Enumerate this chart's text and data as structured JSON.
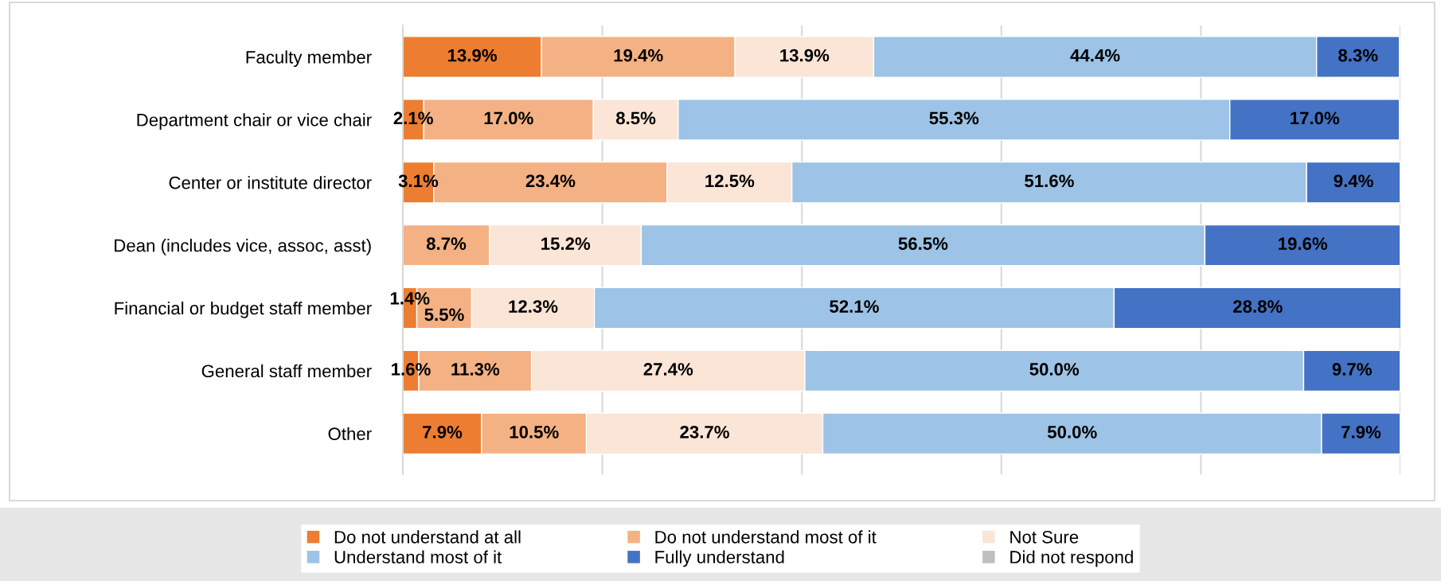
{
  "chart_data": {
    "type": "bar",
    "orientation": "horizontal",
    "stacked": true,
    "categories": [
      "Faculty member",
      "Department chair or vice chair",
      "Center or institute director",
      "Dean (includes vice, assoc, asst)",
      "Financial or budget staff member",
      "General staff member",
      "Other"
    ],
    "series": [
      {
        "name": "Do not understand at all",
        "color": "#ed7d31",
        "values": [
          13.9,
          2.1,
          3.1,
          null,
          1.4,
          1.6,
          7.9
        ],
        "value_labels": [
          "13.9%",
          "2.1%",
          "3.1%",
          null,
          "1.4%",
          "1.6%",
          "7.9%"
        ]
      },
      {
        "name": "Do not understand most of it",
        "color": "#f4b183",
        "values": [
          19.4,
          17.0,
          23.4,
          8.7,
          5.5,
          11.3,
          10.5
        ],
        "value_labels": [
          "19.4%",
          "17.0%",
          "23.4%",
          "8.7%",
          "5.5%",
          "11.3%",
          "10.5%"
        ]
      },
      {
        "name": "Not Sure",
        "color": "#fbe5d6",
        "values": [
          13.9,
          8.5,
          12.5,
          15.2,
          12.3,
          27.4,
          23.7
        ],
        "value_labels": [
          "13.9%",
          "8.5%",
          "12.5%",
          "15.2%",
          "12.3%",
          "27.4%",
          "23.7%"
        ]
      },
      {
        "name": "Understand most of it",
        "color": "#9dc3e6",
        "values": [
          44.4,
          55.3,
          51.6,
          56.5,
          52.1,
          50.0,
          50.0
        ],
        "value_labels": [
          "44.4%",
          "55.3%",
          "51.6%",
          "56.5%",
          "52.1%",
          "50.0%",
          "50.0%"
        ]
      },
      {
        "name": "Fully understand",
        "color": "#4472c4",
        "values": [
          8.3,
          17.0,
          9.4,
          19.6,
          28.8,
          9.7,
          7.9
        ],
        "value_labels": [
          "8.3%",
          "17.0%",
          "9.4%",
          "19.6%",
          "28.8%",
          "9.7%",
          "7.9%"
        ]
      },
      {
        "name": "Did not respond",
        "color": "#bfbfbf",
        "values": [
          null,
          null,
          null,
          null,
          null,
          null,
          null
        ]
      }
    ],
    "xlim": [
      0,
      100
    ],
    "xticks": [
      0,
      20,
      40,
      60,
      80,
      100
    ],
    "tick_labels": "y",
    "grid": "x",
    "legend": "bottom"
  }
}
